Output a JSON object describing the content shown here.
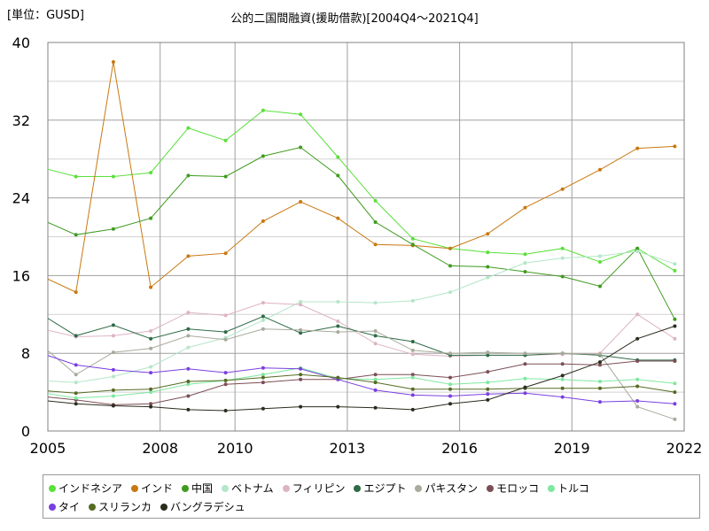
{
  "chart_data": {
    "type": "line",
    "title": "公的二国間融資(援助借款)[2004Q4～2021Q4]",
    "unit_label": "[単位：GUSD]",
    "ylim": [
      0,
      40
    ],
    "yticks": [
      0,
      8,
      16,
      24,
      32,
      40
    ],
    "xlim": [
      2005,
      2022
    ],
    "xticks": [
      2005,
      2008,
      2010,
      2013,
      2016,
      2019,
      2022
    ],
    "grid": true,
    "legend_position": "bottom",
    "x": [
      2004.75,
      2005.75,
      2006.75,
      2007.75,
      2008.75,
      2009.75,
      2010.75,
      2011.75,
      2012.75,
      2013.75,
      2014.75,
      2015.75,
      2016.75,
      2017.75,
      2018.75,
      2019.75,
      2020.75,
      2021.75
    ],
    "series": [
      {
        "name": "インドネシア",
        "color": "#5ae03a",
        "values": [
          27.2,
          26.2,
          26.2,
          26.6,
          31.2,
          29.9,
          33.0,
          32.6,
          28.2,
          23.7,
          19.8,
          18.8,
          18.4,
          18.2,
          18.8,
          17.4,
          18.8,
          16.5
        ]
      },
      {
        "name": "インド",
        "color": "#c87810",
        "values": [
          16.1,
          14.3,
          38.0,
          14.8,
          18.0,
          18.3,
          21.6,
          23.6,
          21.9,
          19.2,
          19.1,
          18.8,
          20.3,
          23.0,
          24.9,
          26.9,
          29.1,
          29.3
        ]
      },
      {
        "name": "中国",
        "color": "#3f9b1e",
        "values": [
          21.9,
          20.2,
          20.8,
          21.9,
          26.3,
          26.2,
          28.3,
          29.2,
          26.3,
          21.5,
          19.2,
          17.0,
          16.9,
          16.4,
          15.9,
          14.9,
          18.8,
          11.5
        ]
      },
      {
        "name": "ベトナム",
        "color": "#b4e6c8",
        "values": [
          5.2,
          5.0,
          5.6,
          6.6,
          8.6,
          9.6,
          11.4,
          13.3,
          13.3,
          13.2,
          13.4,
          14.3,
          15.8,
          17.3,
          17.8,
          18.0,
          18.5,
          17.2
        ]
      },
      {
        "name": "フィリピン",
        "color": "#ddb4c3",
        "values": [
          10.6,
          9.7,
          9.8,
          10.3,
          12.2,
          11.9,
          13.2,
          13.0,
          11.3,
          9.0,
          7.9,
          7.7,
          7.8,
          7.8,
          7.9,
          8.0,
          12.0,
          9.5
        ]
      },
      {
        "name": "エジプト",
        "color": "#2e6b46",
        "values": [
          12.2,
          9.8,
          10.9,
          9.5,
          10.5,
          10.2,
          11.8,
          10.1,
          10.8,
          9.8,
          9.2,
          7.8,
          7.8,
          7.8,
          8.0,
          7.8,
          7.3,
          7.3
        ]
      },
      {
        "name": "パキスタン",
        "color": "#a8ab9c",
        "values": [
          9.1,
          5.8,
          8.1,
          8.5,
          9.8,
          9.4,
          10.5,
          10.4,
          10.2,
          10.3,
          8.3,
          8.0,
          8.1,
          8.0,
          8.0,
          7.9,
          2.5,
          1.2
        ]
      },
      {
        "name": "モロッコ",
        "color": "#7b4e55",
        "values": [
          3.6,
          3.2,
          2.7,
          2.8,
          3.6,
          4.8,
          5.0,
          5.3,
          5.3,
          5.8,
          5.8,
          5.5,
          6.1,
          6.9,
          6.9,
          6.8,
          7.2,
          7.2
        ]
      },
      {
        "name": "トルコ",
        "color": "#7fe8a0",
        "values": [
          4.0,
          3.4,
          3.6,
          4.0,
          4.8,
          5.2,
          5.8,
          6.5,
          5.4,
          5.3,
          5.5,
          4.8,
          5.0,
          5.4,
          5.3,
          5.1,
          5.3,
          4.9
        ]
      },
      {
        "name": "タイ",
        "color": "#7a3fe0",
        "values": [
          8.1,
          6.8,
          6.3,
          6.0,
          6.4,
          6.0,
          6.5,
          6.4,
          5.3,
          4.2,
          3.7,
          3.6,
          3.8,
          3.9,
          3.5,
          3.0,
          3.1,
          2.8
        ]
      },
      {
        "name": "スリランカ",
        "color": "#556b22",
        "values": [
          4.2,
          3.9,
          4.2,
          4.3,
          5.1,
          5.2,
          5.5,
          5.8,
          5.5,
          5.0,
          4.3,
          4.3,
          4.3,
          4.4,
          4.4,
          4.4,
          4.6,
          4.0
        ]
      },
      {
        "name": "バングラデシュ",
        "color": "#2b2b1e",
        "values": [
          3.2,
          2.8,
          2.6,
          2.5,
          2.2,
          2.1,
          2.3,
          2.5,
          2.5,
          2.4,
          2.2,
          2.8,
          3.2,
          4.5,
          5.7,
          7.1,
          9.5,
          10.8
        ]
      }
    ]
  }
}
